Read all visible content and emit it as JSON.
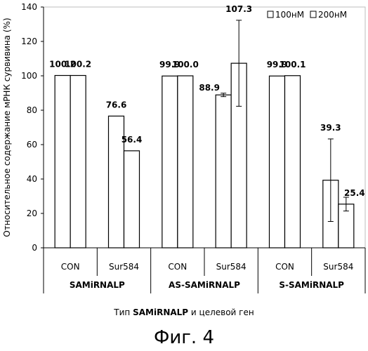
{
  "chart_data": {
    "type": "bar",
    "ylabel": "Относительное содержание мРНК сурвивина (%)",
    "ylim": [
      0,
      140
    ],
    "yticks": [
      0,
      20,
      40,
      60,
      80,
      100,
      120,
      140
    ],
    "categories": [
      "CON",
      "Sur584",
      "CON",
      "Sur584",
      "CON",
      "Sur584"
    ],
    "groups": [
      "SAMiRNALP",
      "AS-SAMiRNALP",
      "S-SAMiRNALP"
    ],
    "legend_position": "top-right",
    "series": [
      {
        "name": "100нМ",
        "values": [
          100.2,
          76.6,
          99.9,
          88.9,
          99.9,
          39.3
        ],
        "labels": [
          "100.2",
          "76.6",
          "99.9",
          "88.9",
          "99.9",
          "39.3"
        ],
        "errors": [
          0,
          0,
          0,
          1,
          0,
          24
        ]
      },
      {
        "name": "200нМ",
        "values": [
          100.2,
          56.4,
          100.0,
          107.3,
          100.1,
          25.4
        ],
        "labels": [
          "100.2",
          "56.4",
          "100.0",
          "107.3",
          "100.1",
          "25.4"
        ],
        "errors": [
          0,
          0,
          0,
          25,
          0,
          4
        ]
      }
    ],
    "grid": false
  },
  "xtitle_prefix": "Тип",
  "xtitle_bold": "SAMiRNALP",
  "xtitle_suffix": "и целевой ген",
  "figure_caption": "Фиг. 4"
}
